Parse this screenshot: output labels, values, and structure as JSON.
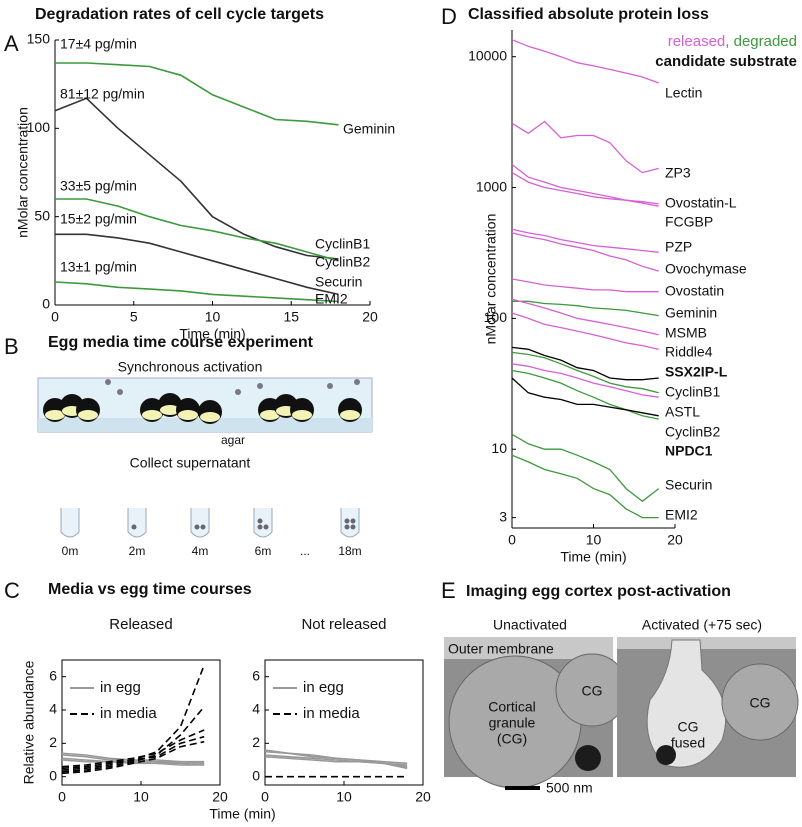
{
  "panel_labels": [
    "A",
    "B",
    "C",
    "D",
    "E"
  ],
  "chart_data": [
    {
      "type": "line",
      "title": "Degradation rates of cell cycle targets",
      "xlabel": "Time (min)",
      "ylabel": "nMolar concentration",
      "x": [
        0,
        2,
        4,
        6,
        8,
        10,
        12,
        14,
        16,
        18
      ],
      "xlim": [
        0,
        20
      ],
      "xticks": [
        0,
        5,
        10,
        15,
        20
      ],
      "ylim": [
        0,
        150
      ],
      "yticks": [
        0,
        50,
        100,
        150
      ],
      "series": [
        {
          "name": "Geminin",
          "color": "#3c9a3c",
          "annotation": "17±4 pg/min",
          "values": [
            137,
            137,
            136,
            135,
            130,
            119,
            112,
            105,
            104,
            102
          ]
        },
        {
          "name": "CyclinB1",
          "color": "#333333",
          "annotation": "81±12 pg/min",
          "values": [
            110,
            117,
            100,
            85,
            70,
            50,
            40,
            33,
            28,
            26
          ]
        },
        {
          "name": "CyclinB2",
          "color": "#3c9a3c",
          "annotation": "33±5 pg/min",
          "values": [
            60,
            60,
            56,
            50,
            45,
            42,
            38,
            35,
            30,
            25
          ]
        },
        {
          "name": "Securin",
          "color": "#333333",
          "annotation": "15±2 pg/min",
          "values": [
            40,
            40,
            38,
            35,
            30,
            25,
            20,
            15,
            10,
            6
          ]
        },
        {
          "name": "EMI2",
          "color": "#3c9a3c",
          "annotation": "13±1 pg/min",
          "values": [
            13,
            12,
            10,
            9,
            8,
            6,
            5,
            4,
            3,
            2
          ]
        }
      ]
    },
    {
      "type": "line",
      "title": "Released",
      "xlabel": "Time (min)",
      "ylabel": "Relative abundance",
      "x": [
        0,
        3,
        6,
        9,
        12,
        15,
        18
      ],
      "xlim": [
        0,
        20
      ],
      "xticks": [
        0,
        10,
        20
      ],
      "ylim": [
        -0.5,
        7
      ],
      "yticks": [
        0,
        2,
        4,
        6
      ],
      "legend": [
        {
          "name": "in egg",
          "color": "#999999",
          "dash": false
        },
        {
          "name": "in media",
          "color": "#000000",
          "dash": true
        }
      ],
      "series": [
        {
          "color": "#999999",
          "dash": false,
          "values": [
            1.3,
            1.2,
            1.0,
            1.0,
            0.9,
            0.9,
            0.9
          ]
        },
        {
          "color": "#999999",
          "dash": false,
          "values": [
            1.1,
            1.0,
            0.9,
            0.8,
            0.8,
            0.7,
            0.7
          ]
        },
        {
          "color": "#999999",
          "dash": false,
          "values": [
            1.4,
            1.3,
            1.1,
            1.0,
            1.0,
            0.9,
            0.8
          ]
        },
        {
          "color": "#999999",
          "dash": false,
          "values": [
            1.0,
            0.9,
            0.9,
            0.9,
            0.8,
            0.8,
            0.7
          ]
        },
        {
          "color": "#000000",
          "dash": true,
          "values": [
            0.5,
            0.6,
            0.8,
            1.0,
            1.5,
            3.0,
            6.7
          ]
        },
        {
          "color": "#000000",
          "dash": true,
          "values": [
            0.3,
            0.4,
            0.6,
            0.9,
            1.3,
            2.5,
            4.2
          ]
        },
        {
          "color": "#000000",
          "dash": true,
          "values": [
            0.6,
            0.7,
            0.9,
            1.1,
            1.4,
            2.2,
            2.8
          ]
        },
        {
          "color": "#000000",
          "dash": true,
          "values": [
            0.4,
            0.5,
            0.7,
            1.0,
            1.2,
            2.0,
            2.4
          ]
        },
        {
          "color": "#000000",
          "dash": true,
          "values": [
            0.2,
            0.3,
            0.5,
            0.8,
            1.1,
            1.8,
            2.1
          ]
        }
      ]
    },
    {
      "type": "line",
      "title": "Not released",
      "x": [
        0,
        3,
        6,
        9,
        12,
        15,
        18
      ],
      "xlim": [
        0,
        20
      ],
      "xticks": [
        0,
        10,
        20
      ],
      "ylim": [
        -0.5,
        7
      ],
      "yticks": [
        0,
        2,
        4,
        6
      ],
      "legend": [
        {
          "name": "in egg",
          "color": "#999999",
          "dash": false
        },
        {
          "name": "in media",
          "color": "#000000",
          "dash": true
        }
      ],
      "series": [
        {
          "color": "#999999",
          "dash": false,
          "values": [
            1.6,
            1.4,
            1.2,
            1.1,
            1.0,
            0.9,
            0.8
          ]
        },
        {
          "color": "#999999",
          "dash": false,
          "values": [
            1.3,
            1.2,
            1.1,
            1.0,
            0.9,
            0.8,
            0.6
          ]
        },
        {
          "color": "#999999",
          "dash": false,
          "values": [
            1.5,
            1.4,
            1.3,
            1.1,
            1.0,
            0.8,
            0.5
          ]
        },
        {
          "color": "#999999",
          "dash": false,
          "values": [
            1.2,
            1.1,
            1.0,
            0.9,
            0.9,
            0.8,
            0.7
          ]
        },
        {
          "color": "#000000",
          "dash": true,
          "values": [
            0,
            0,
            0,
            0,
            0,
            0,
            0
          ]
        }
      ]
    },
    {
      "type": "line",
      "title": "Classified absolute protein loss",
      "xlabel": "Time (min)",
      "ylabel": "nMolar concentration",
      "log_scale": true,
      "legend": [
        {
          "name": "released",
          "color": "#d660d6"
        },
        {
          "name": ", degraded",
          "color": "#3c9a3c"
        },
        {
          "name": "candidate substrate",
          "color": "#000000"
        }
      ],
      "x": [
        0,
        2,
        4,
        6,
        8,
        10,
        12,
        14,
        16,
        18
      ],
      "xlim": [
        0,
        20
      ],
      "xticks": [
        0,
        10,
        20
      ],
      "ylim": [
        2.5,
        16000
      ],
      "yticks": [
        3,
        10,
        100,
        1000,
        10000
      ],
      "series": [
        {
          "name": "Lectin",
          "color": "#d660d6",
          "values": [
            13500,
            12000,
            11000,
            10000,
            9000,
            8500,
            8000,
            7500,
            7000,
            6300
          ]
        },
        {
          "name": "ZP3",
          "color": "#d660d6",
          "values": [
            3100,
            2600,
            3200,
            2400,
            2500,
            2500,
            2200,
            1600,
            1300,
            1400
          ]
        },
        {
          "name": "Ovostatin-L",
          "color": "#d660d6",
          "values": [
            1500,
            1200,
            1100,
            1000,
            950,
            900,
            850,
            800,
            780,
            750
          ]
        },
        {
          "name": "FCGBP",
          "color": "#d660d6",
          "values": [
            1300,
            1100,
            1000,
            950,
            900,
            850,
            820,
            800,
            760,
            720
          ]
        },
        {
          "name": "PZP",
          "color": "#d660d6",
          "values": [
            480,
            450,
            430,
            400,
            380,
            360,
            350,
            340,
            330,
            320
          ]
        },
        {
          "name": "Ovochymase",
          "color": "#d660d6",
          "values": [
            450,
            420,
            400,
            370,
            350,
            330,
            300,
            280,
            250,
            230
          ]
        },
        {
          "name": "Ovostatin",
          "color": "#d660d6",
          "values": [
            200,
            190,
            180,
            175,
            170,
            165,
            165,
            160,
            160,
            160
          ]
        },
        {
          "name": "Geminin",
          "color": "#3c9a3c",
          "values": [
            135,
            135,
            130,
            128,
            125,
            120,
            118,
            115,
            110,
            105
          ]
        },
        {
          "name": "MSMB",
          "color": "#d660d6",
          "values": [
            140,
            130,
            120,
            110,
            100,
            95,
            90,
            85,
            80,
            75
          ]
        },
        {
          "name": "Riddle4",
          "color": "#d660d6",
          "values": [
            110,
            100,
            90,
            85,
            80,
            75,
            70,
            65,
            62,
            58
          ]
        },
        {
          "name": "SSX2IP-L",
          "color": "#000000",
          "values": [
            60,
            58,
            52,
            48,
            42,
            40,
            35,
            34,
            34,
            35
          ]
        },
        {
          "name": "CyclinB1",
          "color": "#3c9a3c",
          "values": [
            55,
            53,
            50,
            45,
            40,
            36,
            32,
            30,
            29,
            27
          ]
        },
        {
          "name": "ASTL",
          "color": "#d660d6",
          "values": [
            45,
            43,
            40,
            38,
            35,
            32,
            30,
            28,
            26,
            25
          ]
        },
        {
          "name": "CyclinB2",
          "color": "#3c9a3c",
          "values": [
            40,
            38,
            35,
            32,
            28,
            25,
            22,
            20,
            18,
            17
          ]
        },
        {
          "name": "NPDC1",
          "color": "#000000",
          "values": [
            35,
            27,
            25,
            24,
            22,
            22,
            21,
            20,
            19,
            18
          ]
        },
        {
          "name": "Securin",
          "color": "#3c9a3c",
          "values": [
            13,
            11,
            10,
            10,
            9,
            8,
            7,
            5,
            4,
            5
          ]
        },
        {
          "name": "EMI2",
          "color": "#3c9a3c",
          "values": [
            9,
            8,
            7,
            6.5,
            6,
            5,
            4.5,
            3.5,
            3,
            3
          ]
        }
      ]
    }
  ],
  "panel_c": {
    "title": "Media vs egg time courses"
  },
  "diagram_b": {
    "title": "Egg media time course experiment",
    "top_label": "Synchronous activation",
    "agar_label": "agar",
    "bottom_label": "Collect supernatant",
    "tubes": [
      "0m",
      "2m",
      "4m",
      "6m",
      "...",
      "18m"
    ]
  },
  "image_e": {
    "title": "Imaging egg cortex post-activation",
    "left_title": "Unactivated",
    "right_title": "Activated (+75 sec)",
    "outer_membrane": "Outer membrane",
    "cg_left": "CG",
    "cortical_granule": [
      "Cortical",
      "granule",
      "(CG)"
    ],
    "cg_fused": [
      "CG",
      "fused"
    ],
    "cg_right": "CG",
    "scale_bar": "500 nm"
  }
}
